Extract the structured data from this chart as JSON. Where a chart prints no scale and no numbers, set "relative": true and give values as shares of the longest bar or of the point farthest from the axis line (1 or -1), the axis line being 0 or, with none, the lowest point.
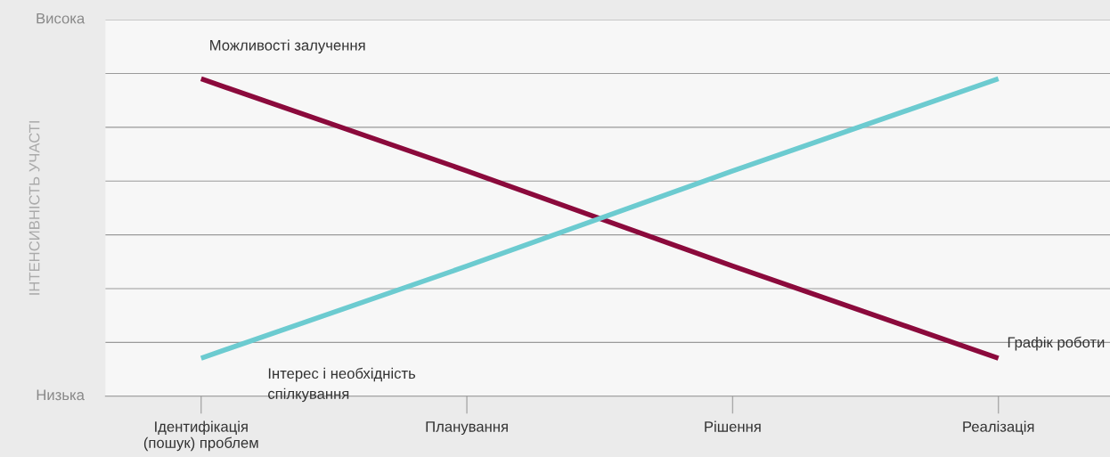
{
  "chart_data": {
    "type": "line",
    "ylabel": "ІНТЕНСИВНІСТЬ УЧАСТІ",
    "categories": [
      "Ідентифікація\n(пошук) проблем",
      "Планування",
      "Рішення",
      "Реалізація"
    ],
    "relative": true,
    "series": [
      {
        "name": "Можливості залучення",
        "color": "#8b0a3c",
        "values": [
          1,
          0.71,
          0.41,
          0.12
        ]
      },
      {
        "name": "Інтерес і необхідність\nспілкування",
        "color": "#6ccbd0",
        "values": [
          0.12,
          0.41,
          0.71,
          1
        ]
      }
    ],
    "grid": "y",
    "annotations": [
      "Висока",
      "Низька",
      "Графік роботи"
    ]
  }
}
